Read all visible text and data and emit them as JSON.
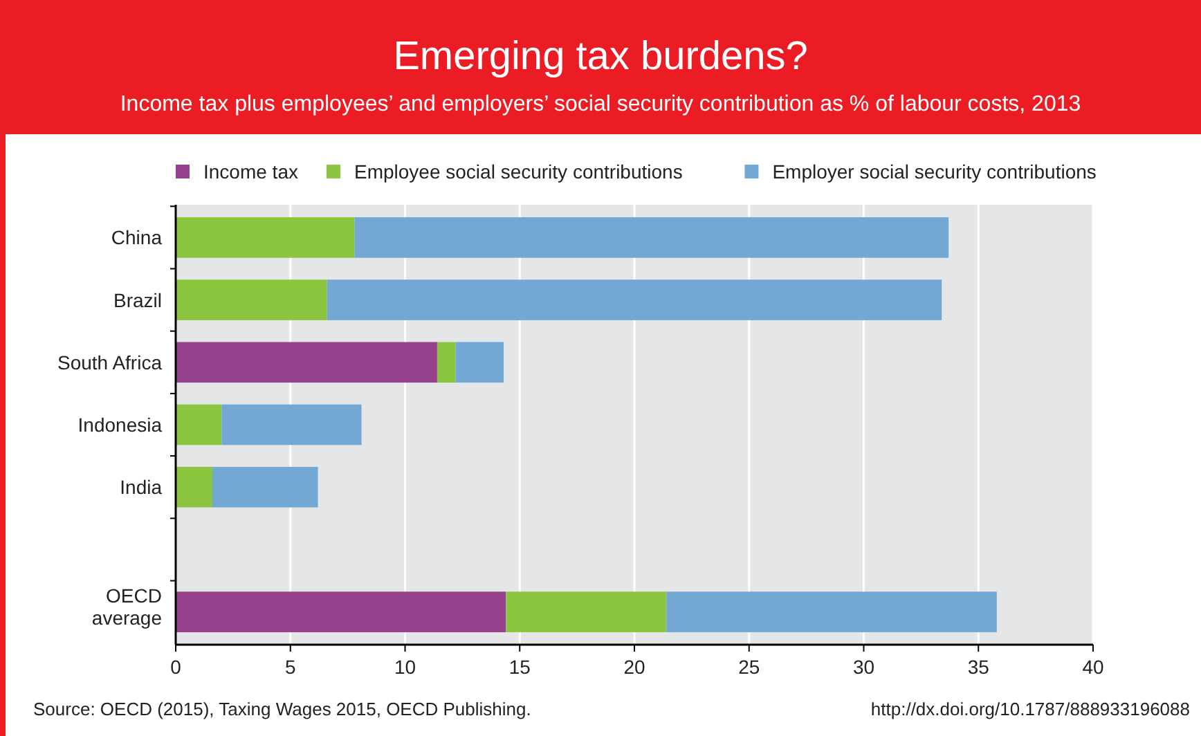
{
  "chart_data": {
    "type": "bar",
    "orientation": "horizontal",
    "stacked": true,
    "title": "Emerging tax burdens?",
    "subtitle": "Income tax plus employees’ and employers’ social security contribution as % of labour costs, 2013",
    "categories": [
      "China",
      "Brazil",
      "South Africa",
      "Indonesia",
      "India",
      null,
      "OECD average"
    ],
    "series": [
      {
        "name": "Income tax",
        "color": "#95418c",
        "values": [
          null,
          null,
          11.4,
          null,
          null,
          null,
          14.4
        ]
      },
      {
        "name": "Employee social security contributions",
        "color": "#8cc540",
        "values": [
          7.8,
          6.6,
          0.8,
          2.0,
          1.6,
          null,
          7.0
        ]
      },
      {
        "name": "Employer social security contributions",
        "color": "#73a8d4",
        "values": [
          25.9,
          26.8,
          2.1,
          6.1,
          4.6,
          null,
          14.4
        ]
      }
    ],
    "xlim": [
      0,
      40
    ],
    "xticks": [
      0,
      5,
      10,
      15,
      20,
      25,
      30,
      35,
      40
    ],
    "grid": "x",
    "legend": "top left",
    "annotations": [
      "Source: OECD (2015), Taxing Wages 2015, OECD Publishing.",
      "http://dx.doi.org/10.1787/888933196088"
    ]
  }
}
